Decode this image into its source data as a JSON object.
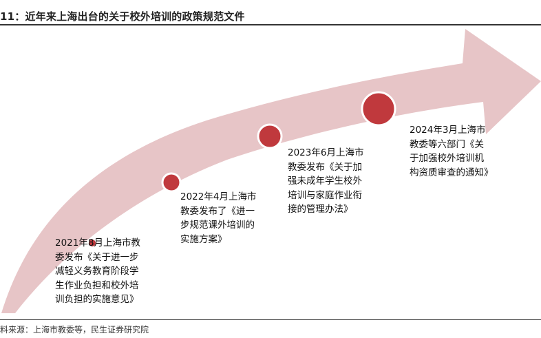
{
  "title": "11：近年来上海出台的关于校外培训的政策规范文件",
  "source": "料来源：上海市教委等，民生证券研究院",
  "colors": {
    "arrow": "#e7c5c7",
    "dot": "#c0393d",
    "dot_ring": "#ffffff",
    "rule": "#333333"
  },
  "events": [
    {
      "lines": [
        "2021年8月上海市教",
        "委发布《关于进一步",
        "减轻义务教育阶段学",
        "生作业负担和校外培",
        "训负担的实施意见》"
      ]
    },
    {
      "lines": [
        "2022年4月上海市",
        "教委发布了《进一",
        "步规范课外培训的",
        "实施方案》"
      ]
    },
    {
      "lines": [
        "2023年6月上海市",
        "教委发布《关于加",
        "强未成年学生校外",
        "培训与家庭作业衔",
        "接的管理办法》"
      ]
    },
    {
      "lines": [
        "2024年3月上海市",
        "教委等六部门《关",
        "于加强校外培训机",
        "构资质审查的通知》"
      ]
    }
  ]
}
